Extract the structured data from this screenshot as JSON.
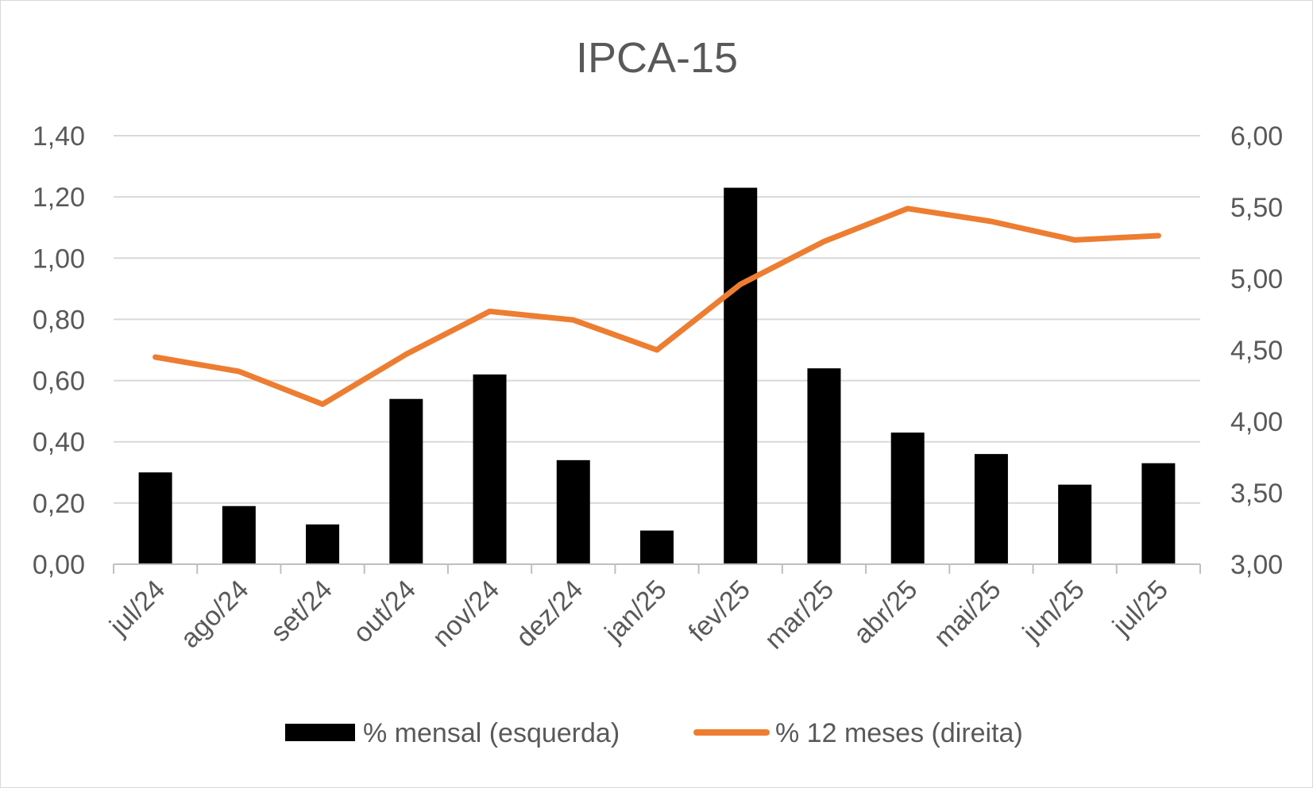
{
  "chart_data": {
    "type": "bar+line",
    "title": "IPCA-15",
    "categories": [
      "jul/24",
      "ago/24",
      "set/24",
      "out/24",
      "nov/24",
      "dez/24",
      "jan/25",
      "fev/25",
      "mar/25",
      "abr/25",
      "mai/25",
      "jun/25",
      "jul/25"
    ],
    "series": [
      {
        "name": "% mensal (esquerda)",
        "type": "bar",
        "axis": "left",
        "color": "#000000",
        "values": [
          0.3,
          0.19,
          0.13,
          0.54,
          0.62,
          0.34,
          0.11,
          1.23,
          0.64,
          0.43,
          0.36,
          0.26,
          0.33
        ]
      },
      {
        "name": "% 12 meses (direita)",
        "type": "line",
        "axis": "right",
        "color": "#ed7d31",
        "values": [
          4.45,
          4.35,
          4.12,
          4.47,
          4.77,
          4.71,
          4.5,
          4.96,
          5.26,
          5.49,
          5.4,
          5.27,
          5.3
        ]
      }
    ],
    "y_left": {
      "min": 0,
      "max": 1.4,
      "ticks": [
        "0,00",
        "0,20",
        "0,40",
        "0,60",
        "0,80",
        "1,00",
        "1,20",
        "1,40"
      ]
    },
    "y_right": {
      "min": 3,
      "max": 6,
      "ticks": [
        "3,00",
        "3,50",
        "4,00",
        "4,50",
        "5,00",
        "5,50",
        "6,00"
      ]
    },
    "grid": true,
    "legend_position": "bottom"
  }
}
